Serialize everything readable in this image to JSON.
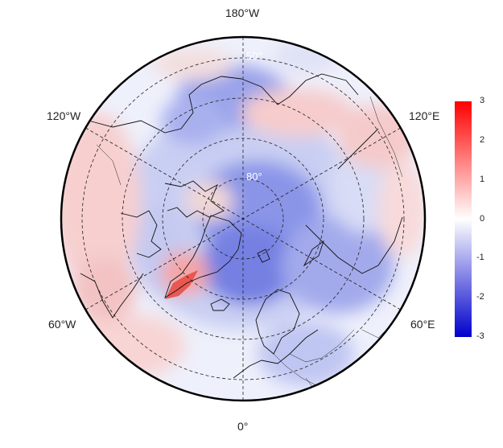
{
  "map": {
    "projection": "north-polar-stereographic",
    "longitude_labels": {
      "top": "180°W",
      "upper_left": "120°W",
      "upper_right": "120°E",
      "lower_left": "60°W",
      "lower_right": "60°E",
      "bottom": "0°"
    },
    "latitude_labels": [
      "50°",
      "80°"
    ],
    "gridlines": "dashed",
    "boundary_color": "#000000"
  },
  "colorbar": {
    "placement": "right",
    "min": -3,
    "max": 3,
    "ticks": [
      "3",
      "2",
      "1",
      "0",
      "-1",
      "-2",
      "-3"
    ],
    "colors": {
      "low": "#0000cc",
      "mid": "#ffffff",
      "high": "#ff0000"
    }
  },
  "anomaly_regions": {
    "arctic_ocean": "negative",
    "siberian_coast": "negative",
    "greenland_southwest": "strong positive",
    "north_atlantic": "positive",
    "north_pacific": "positive",
    "scandinavia": "negative"
  }
}
